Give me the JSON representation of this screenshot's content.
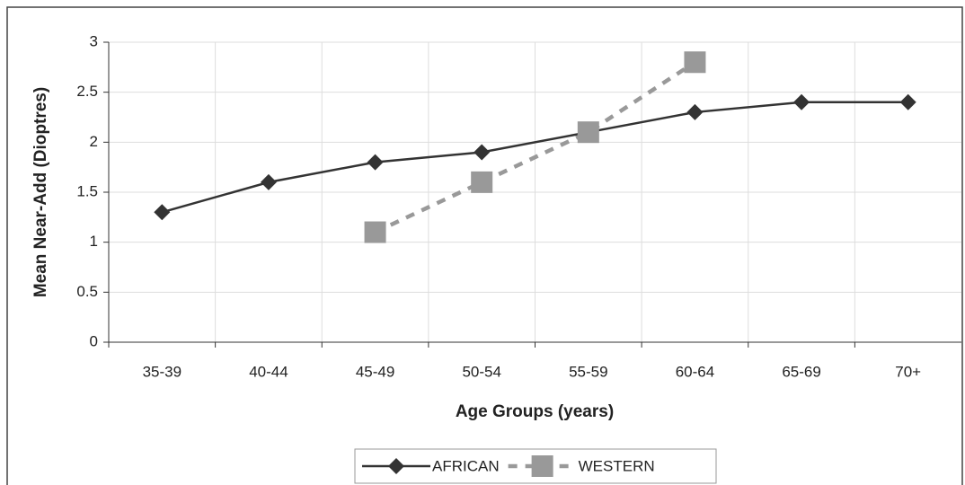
{
  "chart_data": {
    "type": "line",
    "y_label": "Mean Near-Add (Dioptres)",
    "x_label": "Age Groups (years)",
    "categories": [
      "35-39",
      "40-44",
      "45-49",
      "50-54",
      "55-59",
      "60-64",
      "65-69",
      "70+"
    ],
    "series": [
      {
        "name": "AFRICAN",
        "color": "#333333",
        "values": [
          1.3,
          1.6,
          1.8,
          1.9,
          2.1,
          2.3,
          2.4,
          2.4
        ]
      },
      {
        "name": "WESTERN",
        "color": "#999999",
        "values": [
          null,
          null,
          1.1,
          1.6,
          2.1,
          2.8,
          null,
          null
        ]
      }
    ],
    "ylim": [
      0,
      3
    ],
    "yticks": [
      0,
      0.5,
      1,
      1.5,
      2,
      2.5,
      3
    ],
    "grid": true,
    "legend": "bottom"
  }
}
